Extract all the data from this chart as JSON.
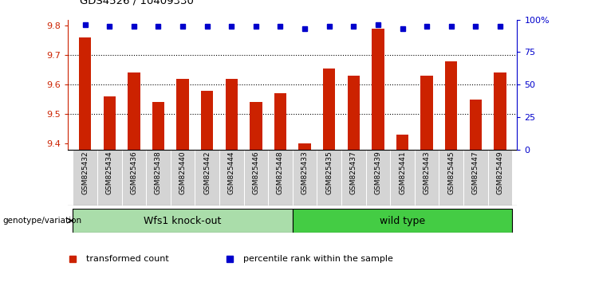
{
  "title": "GDS4526 / 10409330",
  "samples": [
    "GSM825432",
    "GSM825434",
    "GSM825436",
    "GSM825438",
    "GSM825440",
    "GSM825442",
    "GSM825444",
    "GSM825446",
    "GSM825448",
    "GSM825433",
    "GSM825435",
    "GSM825437",
    "GSM825439",
    "GSM825441",
    "GSM825443",
    "GSM825445",
    "GSM825447",
    "GSM825449"
  ],
  "bar_values": [
    9.76,
    9.56,
    9.64,
    9.54,
    9.62,
    9.58,
    9.62,
    9.54,
    9.57,
    9.401,
    9.655,
    9.63,
    9.79,
    9.43,
    9.63,
    9.68,
    9.55,
    9.64
  ],
  "percentile_values": [
    96,
    95,
    95,
    95,
    95,
    95,
    95,
    95,
    95,
    93,
    95,
    95,
    96,
    93,
    95,
    95,
    95,
    95
  ],
  "ylim_left": [
    9.38,
    9.82
  ],
  "ylim_right": [
    0,
    100
  ],
  "yticks_left": [
    9.4,
    9.5,
    9.6,
    9.7,
    9.8
  ],
  "yticks_right": [
    0,
    25,
    50,
    75,
    100
  ],
  "ytick_right_labels": [
    "0",
    "25",
    "50",
    "75",
    "100%"
  ],
  "bar_color": "#cc2200",
  "dot_color": "#0000cc",
  "bar_base": 9.38,
  "groups": [
    {
      "label": "Wfs1 knock-out",
      "start": 0,
      "end": 9,
      "color": "#aaddaa"
    },
    {
      "label": "wild type",
      "start": 9,
      "end": 18,
      "color": "#44cc44"
    }
  ],
  "legend_items": [
    {
      "label": "transformed count",
      "color": "#cc2200"
    },
    {
      "label": "percentile rank within the sample",
      "color": "#0000cc"
    }
  ],
  "genotype_label": "genotype/variation",
  "background_color": "#ffffff",
  "dotted_lines": [
    9.5,
    9.6,
    9.7
  ],
  "figsize": [
    7.41,
    3.54
  ],
  "dpi": 100
}
